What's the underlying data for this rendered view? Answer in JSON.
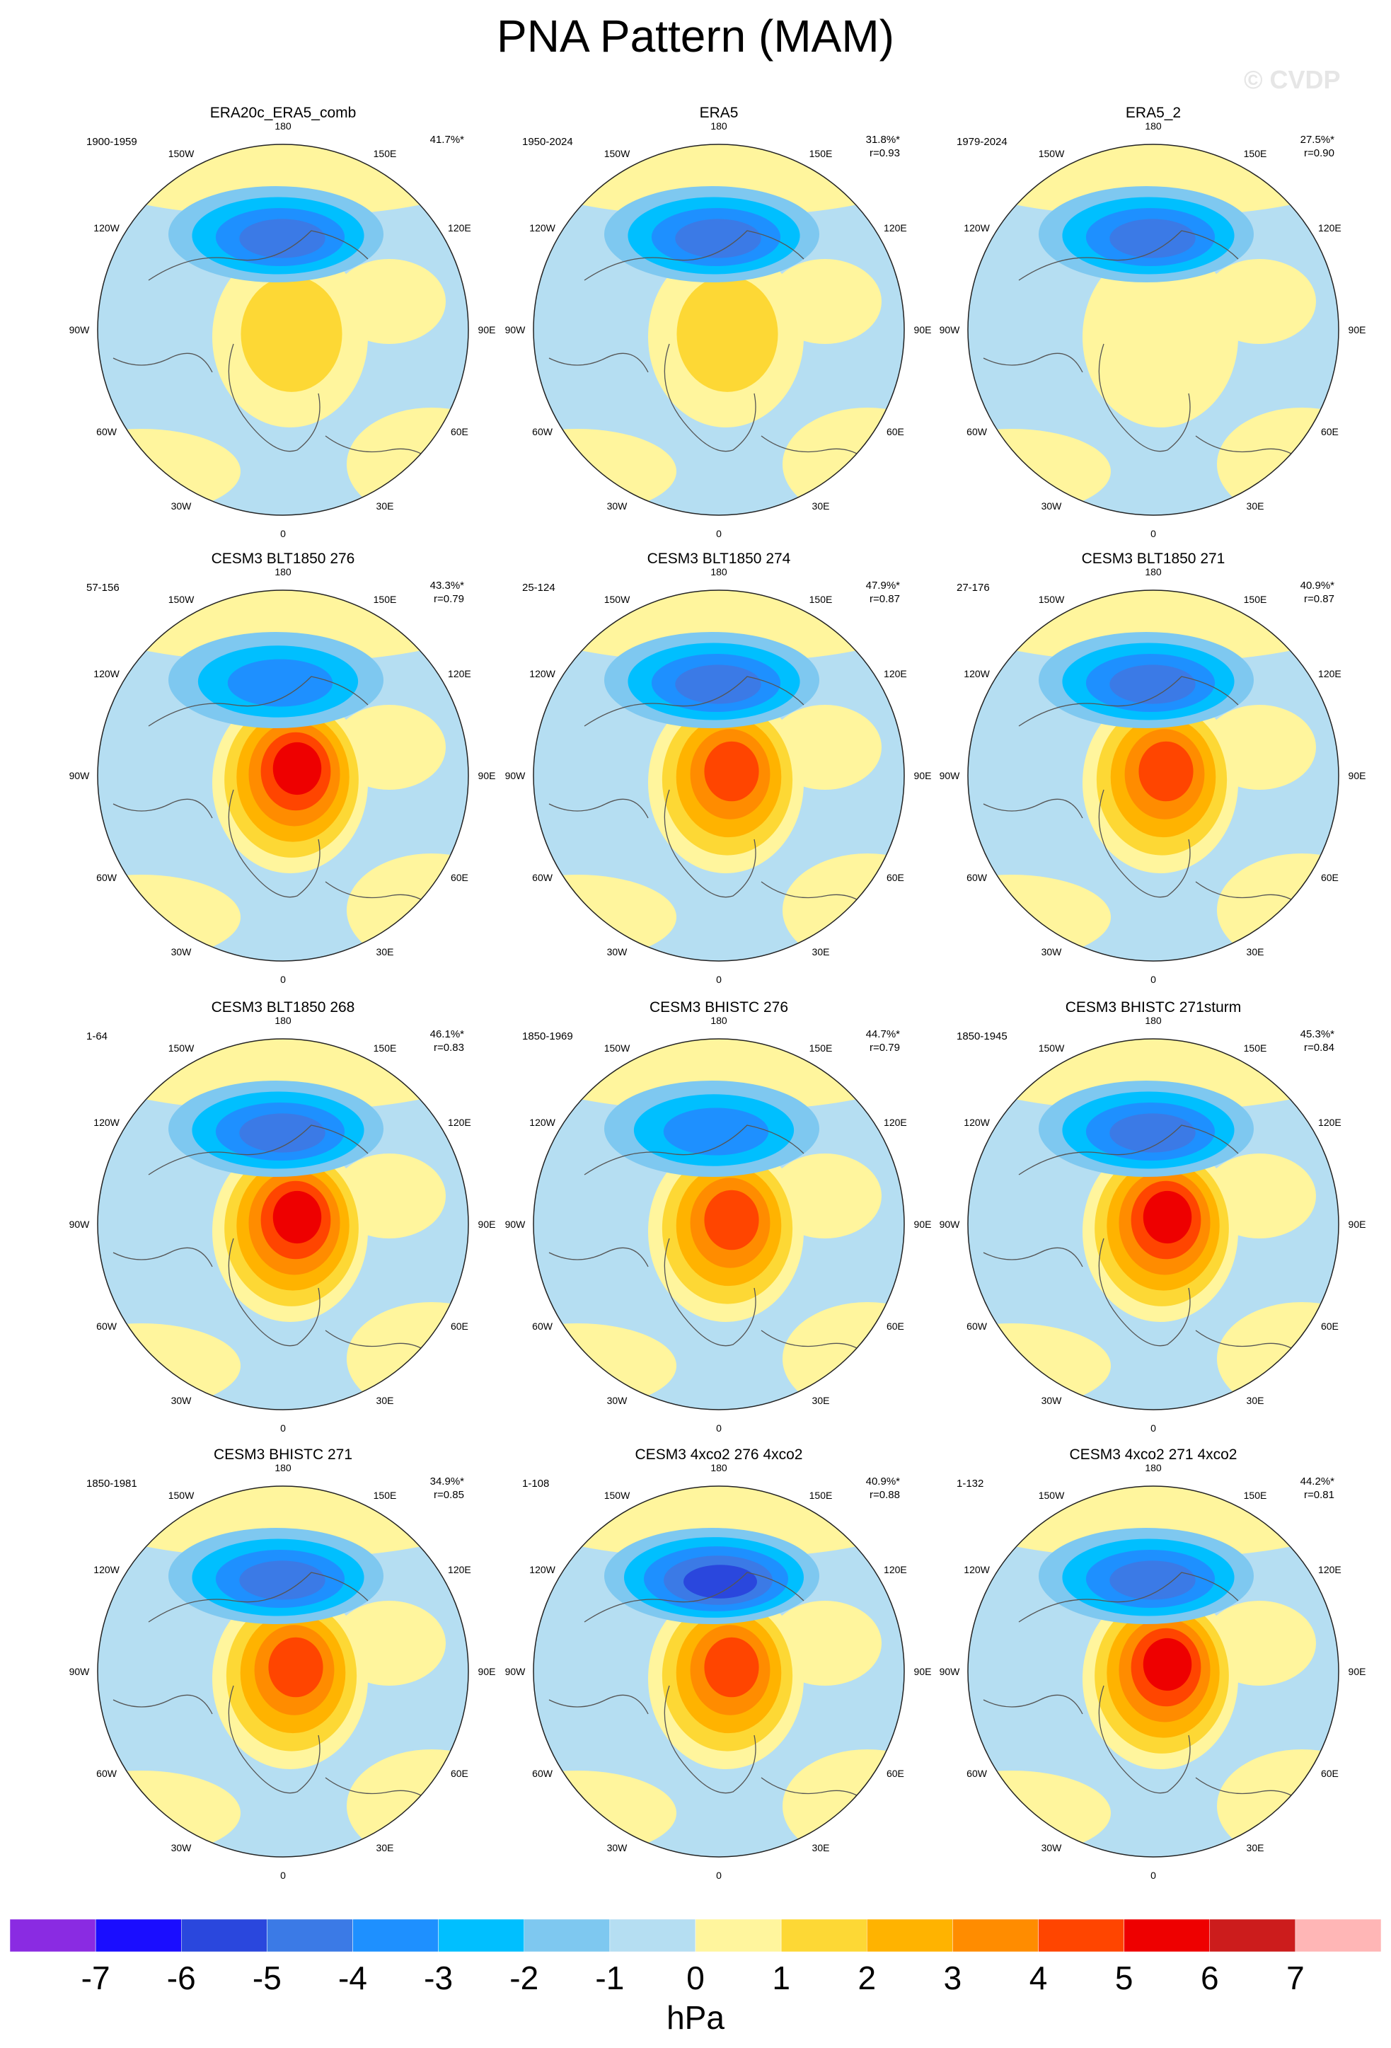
{
  "title": "PNA Pattern (MAM)",
  "watermark": "© CVDP",
  "longitude_labels": {
    "top": "180",
    "upper_left": "150W",
    "upper_right": "150E",
    "left_high": "120W",
    "right_high": "120E",
    "left": "90W",
    "right": "90E",
    "left_low": "60W",
    "right_low": "60E",
    "lower_left": "30W",
    "lower_right": "30E",
    "bottom": "0"
  },
  "panels": [
    {
      "title": "ERA20c_ERA5_comb",
      "period": "1900-1959",
      "pct": "41.7%*",
      "r": "",
      "min_level": -4,
      "max_level": 2
    },
    {
      "title": "ERA5",
      "period": "1950-2024",
      "pct": "31.8%*",
      "r": "r=0.93",
      "min_level": -4,
      "max_level": 2
    },
    {
      "title": "ERA5_2",
      "period": "1979-2024",
      "pct": "27.5%*",
      "r": "r=0.90",
      "min_level": -4,
      "max_level": 1
    },
    {
      "title": "CESM3 BLT1850 276",
      "period": "57-156",
      "pct": "43.3%*",
      "r": "r=0.79",
      "min_level": -3,
      "max_level": 6
    },
    {
      "title": "CESM3 BLT1850 274",
      "period": "25-124",
      "pct": "47.9%*",
      "r": "r=0.87",
      "min_level": -4,
      "max_level": 5
    },
    {
      "title": "CESM3 BLT1850 271",
      "period": "27-176",
      "pct": "40.9%*",
      "r": "r=0.87",
      "min_level": -4,
      "max_level": 5
    },
    {
      "title": "CESM3 BLT1850 268",
      "period": "1-64",
      "pct": "46.1%*",
      "r": "r=0.83",
      "min_level": -4,
      "max_level": 6
    },
    {
      "title": "CESM3 BHISTC 276",
      "period": "1850-1969",
      "pct": "44.7%*",
      "r": "r=0.79",
      "min_level": -3,
      "max_level": 5
    },
    {
      "title": "CESM3 BHISTC 271sturm",
      "period": "1850-1945",
      "pct": "45.3%*",
      "r": "r=0.84",
      "min_level": -4,
      "max_level": 6
    },
    {
      "title": "CESM3 BHISTC 271",
      "period": "1850-1981",
      "pct": "34.9%*",
      "r": "r=0.85",
      "min_level": -4,
      "max_level": 5
    },
    {
      "title": "CESM3 4xco2 276 4xco2",
      "period": "1-108",
      "pct": "40.9%*",
      "r": "r=0.88",
      "min_level": -5,
      "max_level": 5
    },
    {
      "title": "CESM3 4xco2 271 4xco2",
      "period": "1-132",
      "pct": "44.2%*",
      "r": "r=0.81",
      "min_level": -4,
      "max_level": 6
    }
  ],
  "colorbar": {
    "unit": "hPa",
    "labels": [
      "-7",
      "-6",
      "-5",
      "-4",
      "-3",
      "-2",
      "-1",
      "0",
      "1",
      "2",
      "3",
      "4",
      "5",
      "6",
      "7"
    ],
    "colors": [
      "#8a2be2",
      "#1a0dff",
      "#2a47dd",
      "#3b7ae6",
      "#1e90ff",
      "#00bfff",
      "#7ec8f0",
      "#b5def2",
      "#fff59d",
      "#fdd835",
      "#ffb300",
      "#ff8c00",
      "#ff4500",
      "#ee0000",
      "#cc1c1c",
      "#ffb6b6"
    ]
  }
}
